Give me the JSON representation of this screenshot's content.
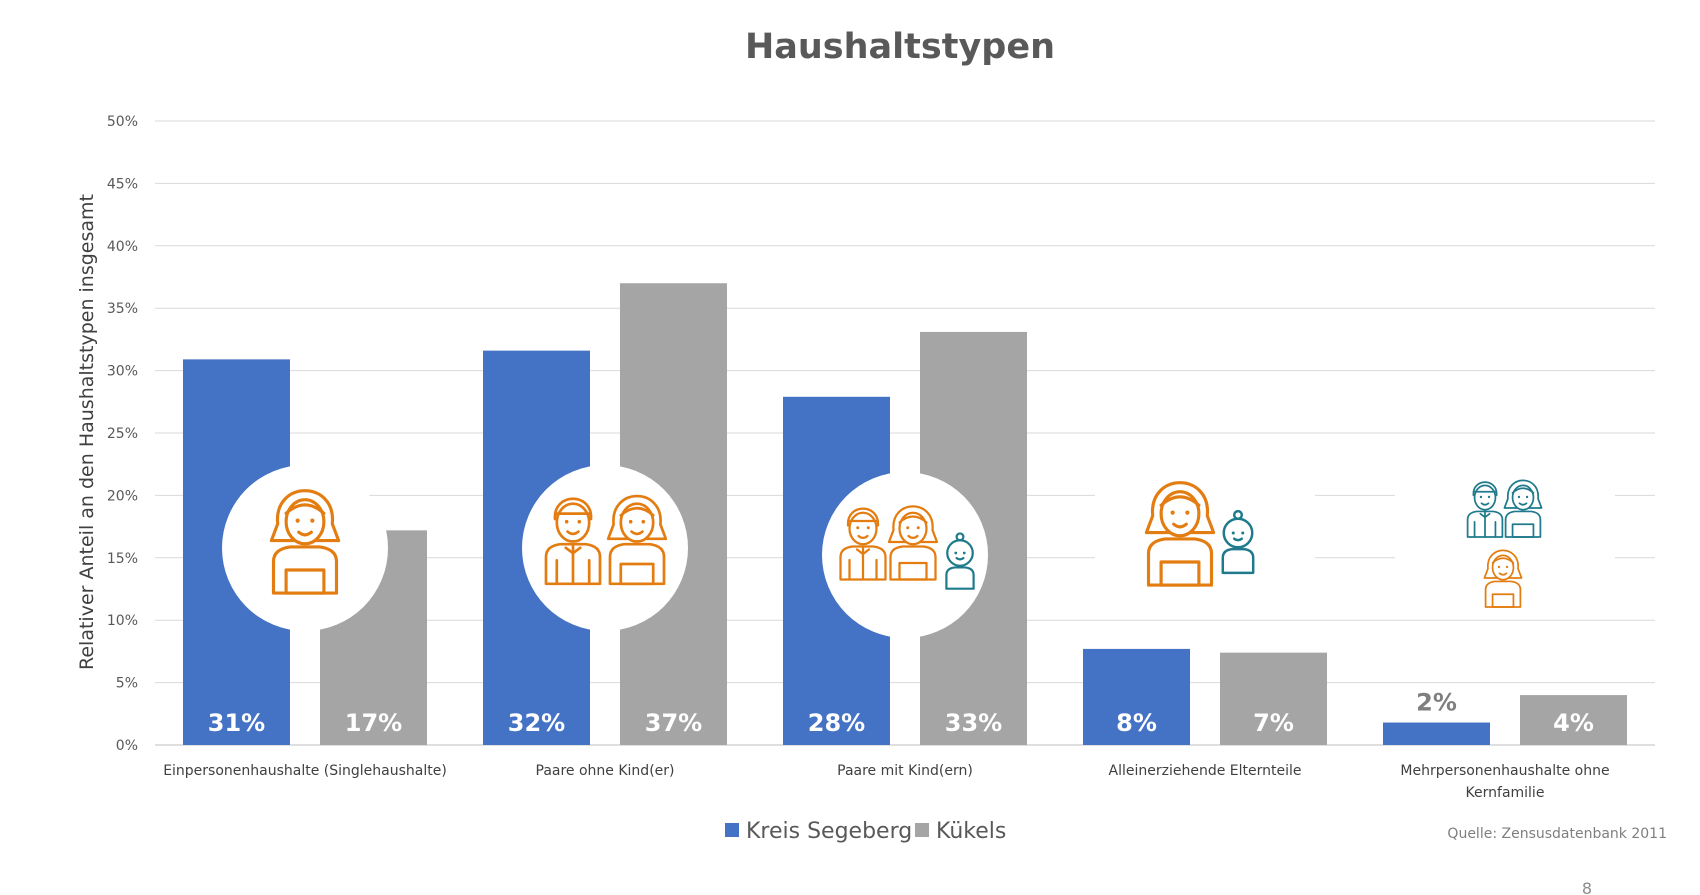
{
  "chart_data": {
    "type": "bar",
    "title": "Haushaltstypen",
    "ylabel": "Relativer Anteil an den Haushaltstypen insgesamt",
    "xlabel": "",
    "ylim": [
      0,
      0.5
    ],
    "yticks": [
      "0%",
      "5%",
      "10%",
      "15%",
      "20%",
      "25%",
      "30%",
      "35%",
      "40%",
      "45%",
      "50%"
    ],
    "grid": true,
    "categories": [
      [
        "Einpersonenhaushalte (Singlehaushalte)"
      ],
      [
        "Paare ohne Kind(er)"
      ],
      [
        "Paare mit Kind(ern)"
      ],
      [
        "Alleinerziehende Elternteile"
      ],
      [
        "Mehrpersonenhaushalte ohne",
        "Kernfamilie"
      ]
    ],
    "series": [
      {
        "name": "Kreis Segeberg",
        "color": "#4472C4",
        "values": [
          0.309,
          0.316,
          0.279,
          0.077,
          0.018
        ],
        "labels": [
          "31%",
          "32%",
          "28%",
          "8%",
          "2%"
        ]
      },
      {
        "name": "Kükels",
        "color": "#A5A5A5",
        "values": [
          0.172,
          0.37,
          0.331,
          0.074,
          0.04
        ],
        "labels": [
          "17%",
          "37%",
          "33%",
          "7%",
          "4%"
        ]
      }
    ],
    "legend_position": "bottom",
    "icons": [
      "single-woman-icon",
      "couple-icon",
      "family-with-baby-icon",
      "single-parent-icon",
      "multi-person-household-icon"
    ]
  },
  "source_text": "Quelle: Zensusdatenbank 2011",
  "page_number": "8",
  "colors": {
    "orange": "#E37D12",
    "teal": "#1F7A8C"
  }
}
